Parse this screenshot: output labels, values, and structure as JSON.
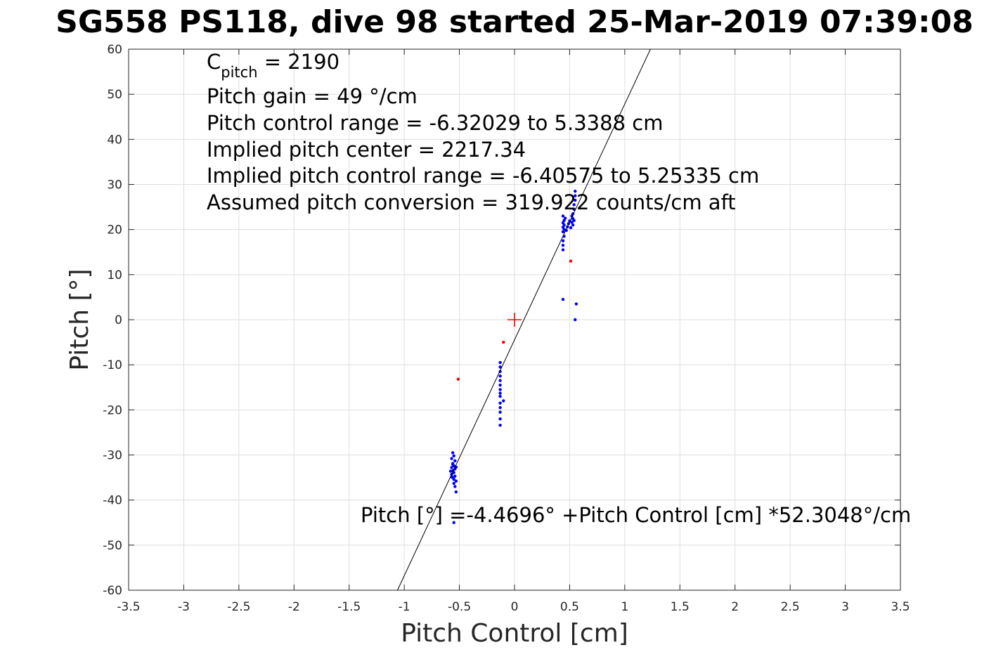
{
  "chart_data": {
    "type": "scatter",
    "title": "SG558 PS118, dive 98 started 25-Mar-2019 07:39:08",
    "xlabel": "Pitch Control [cm]",
    "ylabel": "Pitch [°]",
    "xlim": [
      -3.5,
      3.5
    ],
    "ylim": [
      -60,
      60
    ],
    "grid": true,
    "x_ticks": [
      -3.5,
      -3,
      -2.5,
      -2,
      -1.5,
      -1,
      -0.5,
      0,
      0.5,
      1,
      1.5,
      2,
      2.5,
      3,
      3.5
    ],
    "x_tick_labels": [
      "-3.5",
      "-3",
      "-2.5",
      "-2",
      "-1.5",
      "-1",
      "-0.5",
      "0",
      "0.5",
      "1",
      "1.5",
      "2",
      "2.5",
      "3",
      "3.5"
    ],
    "y_ticks": [
      -60,
      -50,
      -40,
      -30,
      -20,
      -10,
      0,
      10,
      20,
      30,
      40,
      50,
      60
    ],
    "y_tick_labels": [
      "-60",
      "-50",
      "-40",
      "-30",
      "-20",
      "-10",
      "0",
      "10",
      "20",
      "30",
      "40",
      "50",
      "60"
    ],
    "annotations": {
      "c_pitch_label": "C",
      "c_pitch_subscript": "pitch",
      "c_pitch_value": " = 2190",
      "lines": [
        "Pitch gain = 49 °/cm",
        "Pitch control range = -6.32029 to 5.3388 cm",
        "Implied pitch center = 2217.34",
        "Implied pitch control range = -6.40575 to 5.25335 cm",
        "Assumed pitch conversion = 319.922 counts/cm aft"
      ],
      "fit_equation": "Pitch [°] =-4.4696° +Pitch Control [cm] *52.3048°/cm"
    },
    "fit_line": {
      "intercept": -4.4696,
      "slope": 52.3048,
      "color": "#000000"
    },
    "center_marker": {
      "x": 0,
      "y": 0,
      "color": "#ff0000",
      "shape": "plus"
    },
    "series": [
      {
        "color": "#0000ff",
        "points": [
          [
            -0.56,
            -29.5
          ],
          [
            -0.55,
            -30.2
          ],
          [
            -0.57,
            -30.8
          ],
          [
            -0.54,
            -31.3
          ],
          [
            -0.56,
            -31.9
          ],
          [
            -0.55,
            -32.4
          ],
          [
            -0.57,
            -32.8
          ],
          [
            -0.54,
            -33.1
          ],
          [
            -0.56,
            -33.5
          ],
          [
            -0.55,
            -33.9
          ],
          [
            -0.57,
            -34.3
          ],
          [
            -0.54,
            -34.7
          ],
          [
            -0.56,
            -35.0
          ],
          [
            -0.55,
            -35.4
          ],
          [
            -0.53,
            -35.8
          ],
          [
            -0.55,
            -36.3
          ],
          [
            -0.54,
            -37.0
          ],
          [
            -0.53,
            -38.2
          ],
          [
            -0.56,
            -32.1
          ],
          [
            -0.58,
            -33.6
          ],
          [
            -0.53,
            -32.7
          ],
          [
            -0.57,
            -34.9
          ],
          [
            -0.55,
            -45.0
          ],
          [
            -0.13,
            -9.5
          ],
          [
            -0.13,
            -10.5
          ],
          [
            -0.13,
            -11.5
          ],
          [
            -0.13,
            -12.5
          ],
          [
            -0.13,
            -13.5
          ],
          [
            -0.13,
            -14.5
          ],
          [
            -0.13,
            -15.5
          ],
          [
            -0.13,
            -16.3
          ],
          [
            -0.13,
            -17.0
          ],
          [
            -0.13,
            -18.5
          ],
          [
            -0.13,
            -19.5
          ],
          [
            -0.13,
            -20.5
          ],
          [
            -0.13,
            -22.0
          ],
          [
            -0.13,
            -23.4
          ],
          [
            -0.1,
            -18.0
          ],
          [
            0.44,
            15.5
          ],
          [
            0.44,
            16.5
          ],
          [
            0.44,
            17.5
          ],
          [
            0.45,
            18.5
          ],
          [
            0.44,
            19.5
          ],
          [
            0.45,
            20.0
          ],
          [
            0.44,
            20.5
          ],
          [
            0.45,
            21.0
          ],
          [
            0.44,
            21.5
          ],
          [
            0.45,
            22.0
          ],
          [
            0.46,
            22.5
          ],
          [
            0.44,
            23.0
          ],
          [
            0.47,
            19.8
          ],
          [
            0.48,
            20.6
          ],
          [
            0.49,
            21.3
          ],
          [
            0.5,
            21.9
          ],
          [
            0.51,
            20.4
          ],
          [
            0.52,
            21.6
          ],
          [
            0.53,
            22.4
          ],
          [
            0.53,
            23.5
          ],
          [
            0.54,
            24.5
          ],
          [
            0.54,
            25.5
          ],
          [
            0.55,
            26.5
          ],
          [
            0.55,
            27.5
          ],
          [
            0.55,
            28.5
          ],
          [
            0.54,
            22.0
          ],
          [
            0.53,
            21.0
          ],
          [
            0.52,
            23.0
          ],
          [
            0.44,
            4.5
          ],
          [
            0.56,
            3.5
          ],
          [
            0.55,
            0.0
          ]
        ]
      },
      {
        "color": "#ff0000",
        "points": [
          [
            -0.51,
            -13.2
          ],
          [
            -0.1,
            -5.0
          ],
          [
            0.51,
            13.0
          ]
        ]
      }
    ]
  }
}
